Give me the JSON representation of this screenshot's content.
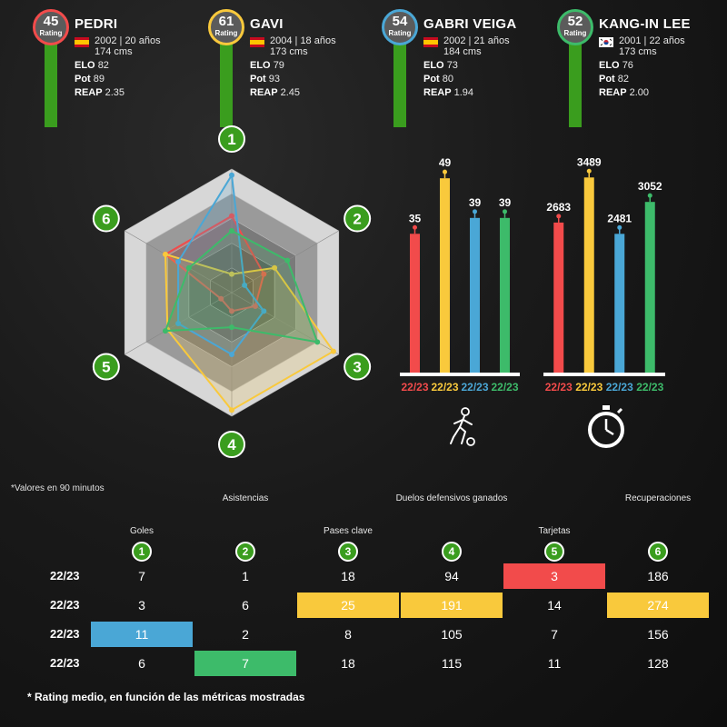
{
  "players": [
    {
      "name": "PEDRI",
      "rating": "45",
      "rating_label": "Rating",
      "color": "#f24b4b",
      "flag": "es",
      "birth": "2002 | 20 años",
      "height": "174 cms",
      "elo_label": "ELO",
      "elo": "82",
      "pot_label": "Pot",
      "pot": "89",
      "reap_label": "REAP",
      "reap": "2.35"
    },
    {
      "name": "GAVI",
      "rating": "61",
      "rating_label": "Rating",
      "color": "#f9c93c",
      "flag": "es",
      "birth": "2004 | 18 años",
      "height": "173 cms",
      "elo_label": "ELO",
      "elo": "79",
      "pot_label": "Pot",
      "pot": "93",
      "reap_label": "REAP",
      "reap": "2.45"
    },
    {
      "name": "GABRI VEIGA",
      "rating": "54",
      "rating_label": "Rating",
      "color": "#4aa7d6",
      "flag": "es",
      "birth": "2002 | 21 años",
      "height": "184 cms",
      "elo_label": "ELO",
      "elo": "73",
      "pot_label": "Pot",
      "pot": "80",
      "reap_label": "REAP",
      "reap": "1.94"
    },
    {
      "name": "KANG-IN LEE",
      "rating": "52",
      "rating_label": "Rating",
      "color": "#3dbb6a",
      "flag": "kr",
      "birth": "2001 | 22 años",
      "height": "173 cms",
      "elo_label": "ELO",
      "elo": "76",
      "pot_label": "Pot",
      "pot": "82",
      "reap_label": "REAP",
      "reap": "2.00"
    }
  ],
  "radar_axes": [
    "1",
    "2",
    "3",
    "4",
    "5",
    "6"
  ],
  "chart_data": [
    {
      "type": "radar",
      "axes": [
        "1",
        "2",
        "3",
        "4",
        "5",
        "6"
      ],
      "series": [
        {
          "name": "PEDRI",
          "color": "#f24b4b",
          "values": [
            0.62,
            0.3,
            0.22,
            0.15,
            0.1,
            0.62
          ]
        },
        {
          "name": "GAVI",
          "color": "#f9c93c",
          "values": [
            0.15,
            0.4,
            0.95,
            0.95,
            0.6,
            0.62
          ]
        },
        {
          "name": "GABRI VEIGA",
          "color": "#4aa7d6",
          "values": [
            0.95,
            0.12,
            0.3,
            0.5,
            0.5,
            0.5
          ]
        },
        {
          "name": "KANG-IN LEE",
          "color": "#3dbb6a",
          "values": [
            0.5,
            0.52,
            0.8,
            0.28,
            0.62,
            0.4
          ]
        }
      ]
    },
    {
      "type": "bar",
      "icon": "football-player-icon",
      "categories": [
        "22/23",
        "22/23",
        "22/23",
        "22/23"
      ],
      "values": [
        35,
        49,
        39,
        39
      ],
      "colors": [
        "#f24b4b",
        "#f9c93c",
        "#4aa7d6",
        "#3dbb6a"
      ],
      "ylim": [
        0,
        55
      ]
    },
    {
      "type": "bar",
      "icon": "stopwatch-icon",
      "categories": [
        "22/23",
        "22/23",
        "22/23",
        "22/23"
      ],
      "values": [
        2683,
        3489,
        2481,
        3052
      ],
      "colors": [
        "#f24b4b",
        "#f9c93c",
        "#4aa7d6",
        "#3dbb6a"
      ],
      "ylim": [
        0,
        3900
      ]
    },
    {
      "type": "table",
      "note": "*Valores en 90 minutos",
      "columns": [
        {
          "num": "1",
          "label": "Goles"
        },
        {
          "num": "2",
          "label": "Asistencias"
        },
        {
          "num": "3",
          "label": "Pases clave"
        },
        {
          "num": "4",
          "label": "Duelos defensivos ganados"
        },
        {
          "num": "5",
          "label": "Tarjetas"
        },
        {
          "num": "6",
          "label": "Recuperaciones"
        }
      ],
      "rows": [
        {
          "season": "22/23",
          "values": [
            "7",
            "1",
            "18",
            "94",
            "3",
            "186"
          ]
        },
        {
          "season": "22/23",
          "values": [
            "3",
            "6",
            "25",
            "191",
            "14",
            "274"
          ]
        },
        {
          "season": "22/23",
          "values": [
            "11",
            "2",
            "8",
            "105",
            "7",
            "156"
          ]
        },
        {
          "season": "22/23",
          "values": [
            "6",
            "7",
            "18",
            "115",
            "11",
            "128"
          ]
        }
      ],
      "highlights": [
        {
          "row": 0,
          "col": 4,
          "color": "#f24b4b"
        },
        {
          "row": 1,
          "col": 2,
          "color": "#f9c93c"
        },
        {
          "row": 1,
          "col": 3,
          "color": "#f9c93c"
        },
        {
          "row": 1,
          "col": 5,
          "color": "#f9c93c"
        },
        {
          "row": 2,
          "col": 0,
          "color": "#4aa7d6"
        },
        {
          "row": 3,
          "col": 1,
          "color": "#3dbb6a"
        }
      ]
    }
  ],
  "footnote": "* Rating medio, en función de las métricas mostradas"
}
